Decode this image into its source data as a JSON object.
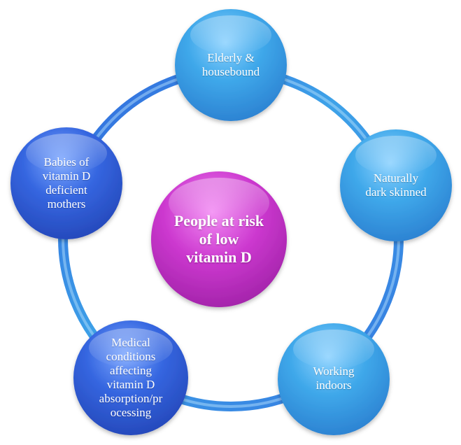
{
  "center": {
    "label": "People at risk\nof low\nvitamin D",
    "color": "#c42fc6"
  },
  "nodes": [
    {
      "label": "Elderly &\nhousebound"
    },
    {
      "label": "Naturally\ndark skinned"
    },
    {
      "label": "Working\nindoors"
    },
    {
      "label": "Medical\nconditions\naffecting\nvitamin D\nabsorption/pr\nocessing"
    },
    {
      "label": "Babies of\nvitamin D\ndeficient\nmothers"
    }
  ],
  "colors": {
    "ring": "#3f8fe0",
    "node_light": "#3aa6e6",
    "node_dark": "#2f5fd8"
  }
}
